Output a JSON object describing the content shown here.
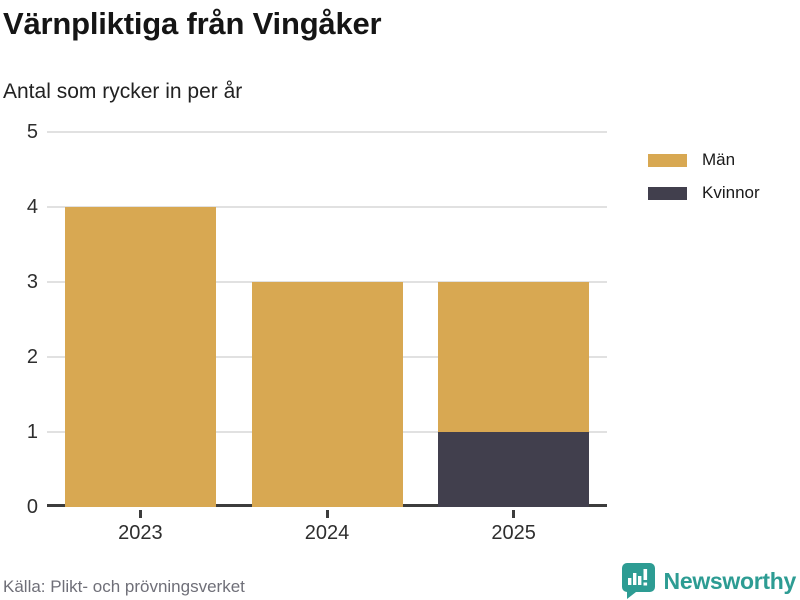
{
  "header": {
    "title": "Värnpliktiga från Vingåker",
    "subtitle": "Antal som rycker in per år"
  },
  "chart_data": {
    "type": "bar",
    "stacked": true,
    "categories": [
      "2023",
      "2024",
      "2025"
    ],
    "series": [
      {
        "name": "Män",
        "color": "#d8a852",
        "values": [
          4,
          3,
          2
        ]
      },
      {
        "name": "Kvinnor",
        "color": "#413f4d",
        "values": [
          0,
          0,
          1
        ]
      }
    ],
    "stack_bottom_to_top": [
      "Kvinnor",
      "Män"
    ],
    "title": "Värnpliktiga från Vingåker",
    "subtitle": "Antal som rycker in per år",
    "xlabel": "",
    "ylabel": "",
    "ylim": [
      0,
      5
    ],
    "yticks": [
      0,
      1,
      2,
      3,
      4,
      5
    ],
    "grid": true,
    "legend_position": "right"
  },
  "legend": {
    "items": [
      {
        "label": "Män",
        "color": "#d8a852"
      },
      {
        "label": "Kvinnor",
        "color": "#413f4d"
      }
    ]
  },
  "footer": {
    "source": "Källa: Plikt- och prövningsverket",
    "brand": "Newsworthy"
  },
  "colors": {
    "men": "#d8a852",
    "women": "#413f4d",
    "brand_teal": "#2d9c93",
    "gridline": "#e1e1e1",
    "axis": "#3c3c3c",
    "title_text": "#151515",
    "source_text": "#6f6f78"
  }
}
